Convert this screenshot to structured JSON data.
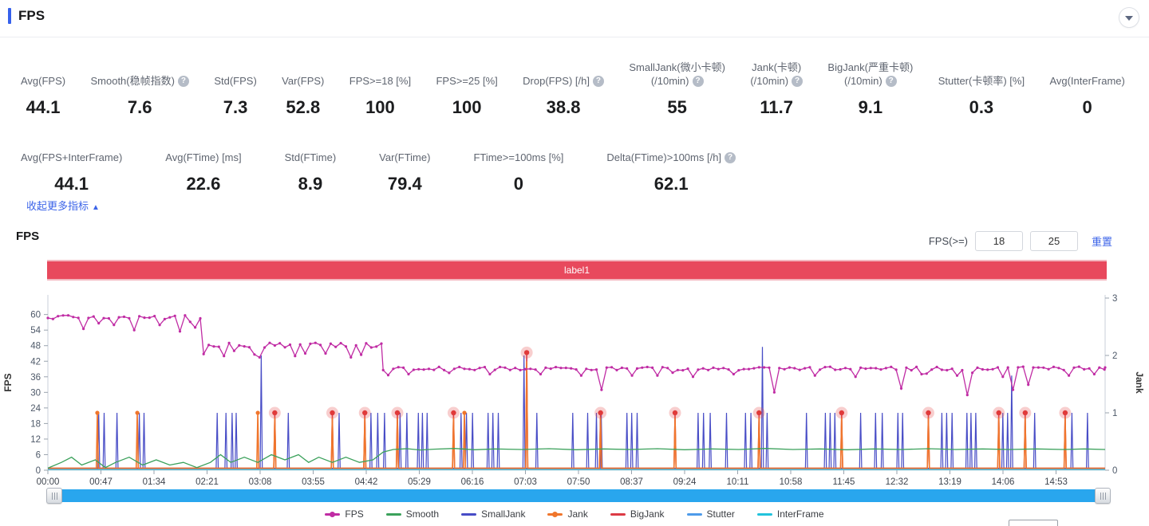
{
  "header": {
    "title": "FPS"
  },
  "metrics_row1": [
    {
      "label": "Avg(FPS)",
      "value": "44.1",
      "help": false
    },
    {
      "label": "Smooth(稳帧指数)",
      "value": "7.6",
      "help": true
    },
    {
      "label": "Std(FPS)",
      "value": "7.3",
      "help": false
    },
    {
      "label": "Var(FPS)",
      "value": "52.8",
      "help": false
    },
    {
      "label": "FPS>=18 [%]",
      "value": "100",
      "help": false
    },
    {
      "label": "FPS>=25 [%]",
      "value": "100",
      "help": false
    },
    {
      "label": "Drop(FPS) [/h]",
      "value": "38.8",
      "help": true
    },
    {
      "label": "SmallJank(微小卡顿)\n(/10min)",
      "value": "55",
      "help": true
    },
    {
      "label": "Jank(卡顿)\n(/10min)",
      "value": "11.7",
      "help": true
    },
    {
      "label": "BigJank(严重卡顿)\n(/10min)",
      "value": "9.1",
      "help": true
    },
    {
      "label": "Stutter(卡顿率) [%]",
      "value": "0.3",
      "help": false
    },
    {
      "label": "Avg(InterFrame)",
      "value": "0",
      "help": false
    }
  ],
  "metrics_row2": [
    {
      "label": "Avg(FPS+InterFrame)",
      "value": "44.1",
      "help": false
    },
    {
      "label": "Avg(FTime) [ms]",
      "value": "22.6",
      "help": false
    },
    {
      "label": "Std(FTime)",
      "value": "8.9",
      "help": false
    },
    {
      "label": "Var(FTime)",
      "value": "79.4",
      "help": false
    },
    {
      "label": "FTime>=100ms [%]",
      "value": "0",
      "help": false
    },
    {
      "label": "Delta(FTime)>100ms [/h]",
      "value": "62.1",
      "help": true
    }
  ],
  "collapse_link": {
    "text": "收起更多指标",
    "arrow": "▲"
  },
  "chart_section": {
    "title": "FPS",
    "filter_label": "FPS(>=)",
    "input1": "18",
    "input2": "25",
    "reset_label": "重置",
    "band_label": "label1"
  },
  "chart_data": {
    "type": "line",
    "title": "FPS",
    "annotation_band": "label1",
    "x_axis": {
      "labels": [
        "00:00",
        "00:47",
        "01:34",
        "02:21",
        "03:08",
        "03:55",
        "04:42",
        "05:29",
        "06:16",
        "07:03",
        "07:50",
        "08:37",
        "09:24",
        "10:11",
        "10:58",
        "11:45",
        "12:32",
        "13:19",
        "14:06",
        "14:53"
      ],
      "t_max_minutes": 15.61
    },
    "y_left": {
      "label": "FPS",
      "ticks": [
        0,
        6,
        12,
        18,
        24,
        30,
        36,
        42,
        48,
        54,
        60
      ],
      "range": [
        0,
        67.6
      ]
    },
    "y_right": {
      "label": "Jank",
      "ticks": [
        0,
        1,
        2,
        3
      ],
      "range": [
        0,
        3.05
      ]
    },
    "grid": false,
    "legend_position": "bottom",
    "series": [
      {
        "name": "FPS",
        "color": "#c02ca4",
        "axis": "left",
        "style": "dotted-line",
        "segments": [
          {
            "t0": 0.0,
            "t1": 2.3,
            "base": 59.4,
            "amp": 1.1
          },
          {
            "t0": 2.3,
            "t1": 4.95,
            "base": 48.8,
            "amp": 1.4
          },
          {
            "t0": 4.95,
            "t1": 15.61,
            "base": 39.6,
            "amp": 1.0
          }
        ],
        "dips": [
          [
            0.55,
            54.5
          ],
          [
            0.95,
            56
          ],
          [
            1.3,
            54
          ],
          [
            1.95,
            53.5
          ],
          [
            2.15,
            55
          ],
          [
            2.6,
            44
          ],
          [
            3.15,
            43.5
          ],
          [
            3.62,
            44
          ],
          [
            4.1,
            45
          ],
          [
            4.5,
            43.5
          ],
          [
            4.62,
            44.5
          ],
          [
            5.3,
            37
          ],
          [
            5.9,
            37.5
          ],
          [
            6.55,
            37
          ],
          [
            7.25,
            37
          ],
          [
            7.9,
            36.5
          ],
          [
            8.2,
            31
          ],
          [
            8.6,
            36.5
          ],
          [
            9.0,
            36.5
          ],
          [
            9.55,
            36
          ],
          [
            10.15,
            37
          ],
          [
            10.7,
            30
          ],
          [
            11.3,
            36.5
          ],
          [
            11.9,
            36
          ],
          [
            12.6,
            31.5
          ],
          [
            12.9,
            37
          ],
          [
            13.55,
            29
          ],
          [
            14.1,
            36
          ],
          [
            14.25,
            31
          ],
          [
            14.45,
            33
          ],
          [
            15.1,
            36.5
          ],
          [
            15.45,
            37
          ]
        ]
      },
      {
        "name": "Smooth",
        "color": "#3ba15b",
        "axis": "left",
        "style": "line",
        "points": [
          [
            0,
            0.8
          ],
          [
            0.2,
            3
          ],
          [
            0.35,
            5
          ],
          [
            0.5,
            2
          ],
          [
            0.7,
            4
          ],
          [
            0.85,
            1
          ],
          [
            1.0,
            3
          ],
          [
            1.2,
            5
          ],
          [
            1.4,
            2
          ],
          [
            1.6,
            4
          ],
          [
            1.8,
            2
          ],
          [
            2.0,
            3
          ],
          [
            2.2,
            1
          ],
          [
            2.4,
            3
          ],
          [
            2.55,
            6
          ],
          [
            2.7,
            3
          ],
          [
            2.9,
            5
          ],
          [
            3.1,
            3
          ],
          [
            3.3,
            6
          ],
          [
            3.5,
            4
          ],
          [
            3.7,
            6
          ],
          [
            3.85,
            3
          ],
          [
            4.0,
            5
          ],
          [
            4.2,
            3
          ],
          [
            4.4,
            5
          ],
          [
            4.6,
            3
          ],
          [
            4.8,
            4
          ],
          [
            4.95,
            7
          ],
          [
            5.1,
            8
          ],
          [
            5.3,
            8.3
          ],
          [
            5.5,
            7.8
          ],
          [
            5.7,
            8.1
          ],
          [
            6.0,
            8.4
          ],
          [
            6.3,
            7.9
          ],
          [
            6.6,
            8.2
          ],
          [
            7.0,
            8.0
          ],
          [
            7.4,
            8.3
          ],
          [
            7.8,
            7.9
          ],
          [
            8.2,
            8.2
          ],
          [
            8.6,
            8.0
          ],
          [
            9.0,
            8.3
          ],
          [
            9.4,
            7.9
          ],
          [
            9.8,
            8.2
          ],
          [
            10.2,
            8.0
          ],
          [
            10.6,
            8.4
          ],
          [
            11.0,
            8.0
          ],
          [
            11.4,
            8.2
          ],
          [
            11.8,
            7.9
          ],
          [
            12.2,
            8.2
          ],
          [
            12.6,
            8.0
          ],
          [
            13.0,
            8.3
          ],
          [
            13.4,
            8.0
          ],
          [
            13.8,
            8.2
          ],
          [
            14.2,
            8.0
          ],
          [
            14.6,
            8.2
          ],
          [
            15.0,
            8.0
          ],
          [
            15.3,
            8.2
          ],
          [
            15.61,
            8.0
          ]
        ]
      },
      {
        "name": "SmallJank",
        "color": "#474cc6",
        "axis": "right",
        "style": "spikes",
        "spikes": [
          [
            0.75,
            1
          ],
          [
            0.83,
            1
          ],
          [
            1.02,
            1
          ],
          [
            1.35,
            1
          ],
          [
            1.42,
            1
          ],
          [
            2.5,
            1
          ],
          [
            2.63,
            1
          ],
          [
            2.72,
            1
          ],
          [
            2.78,
            1
          ],
          [
            3.15,
            2.0
          ],
          [
            3.55,
            1
          ],
          [
            4.3,
            1
          ],
          [
            4.77,
            1
          ],
          [
            4.87,
            1
          ],
          [
            4.97,
            1
          ],
          [
            5.2,
            1
          ],
          [
            5.3,
            1
          ],
          [
            5.47,
            1
          ],
          [
            5.53,
            1
          ],
          [
            5.6,
            1
          ],
          [
            6.1,
            1
          ],
          [
            6.18,
            1
          ],
          [
            6.27,
            1
          ],
          [
            6.5,
            1
          ],
          [
            6.57,
            1
          ],
          [
            6.65,
            1
          ],
          [
            7.03,
            2.0
          ],
          [
            7.22,
            1
          ],
          [
            7.75,
            1
          ],
          [
            7.97,
            1
          ],
          [
            8.1,
            1
          ],
          [
            8.17,
            1
          ],
          [
            8.55,
            1
          ],
          [
            8.62,
            1
          ],
          [
            8.7,
            1
          ],
          [
            9.6,
            1
          ],
          [
            9.68,
            1
          ],
          [
            9.78,
            1
          ],
          [
            10.02,
            1
          ],
          [
            10.3,
            1
          ],
          [
            10.38,
            1
          ],
          [
            10.55,
            2.15
          ],
          [
            10.62,
            1
          ],
          [
            11.2,
            1
          ],
          [
            11.48,
            1
          ],
          [
            11.55,
            1
          ],
          [
            11.62,
            1
          ],
          [
            12.0,
            1
          ],
          [
            12.22,
            1
          ],
          [
            12.32,
            1
          ],
          [
            12.55,
            1
          ],
          [
            12.62,
            1
          ],
          [
            13.2,
            1
          ],
          [
            13.27,
            1
          ],
          [
            13.35,
            1
          ],
          [
            13.57,
            1
          ],
          [
            13.63,
            1
          ],
          [
            13.7,
            1
          ],
          [
            14.1,
            1
          ],
          [
            14.17,
            1
          ],
          [
            14.23,
            1.65
          ],
          [
            14.57,
            1
          ],
          [
            15.12,
            1
          ],
          [
            15.35,
            1
          ]
        ]
      },
      {
        "name": "Jank",
        "color": "#f0762c",
        "axis": "right",
        "style": "spikes",
        "spikes": [
          [
            0.73,
            1
          ],
          [
            1.32,
            1
          ],
          [
            3.1,
            1
          ],
          [
            3.35,
            0.92
          ],
          [
            4.2,
            0.92
          ],
          [
            4.68,
            0.92
          ],
          [
            5.16,
            0.92
          ],
          [
            5.99,
            0.92
          ],
          [
            6.15,
            1
          ],
          [
            7.07,
            1.9
          ],
          [
            8.16,
            0.92
          ],
          [
            9.26,
            0.92
          ],
          [
            10.5,
            0.92
          ],
          [
            11.72,
            0.92
          ],
          [
            13.0,
            0.92
          ],
          [
            14.04,
            0.92
          ],
          [
            14.43,
            0.92
          ],
          [
            15.02,
            0.92
          ]
        ],
        "marker_points": [
          [
            0.73,
            1
          ],
          [
            1.32,
            1
          ],
          [
            3.1,
            1
          ],
          [
            6.15,
            1
          ]
        ]
      },
      {
        "name": "BigJank",
        "color": "#dc3a45",
        "axis": "right",
        "style": "spikes",
        "spikes": [
          [
            3.35,
            1
          ],
          [
            4.2,
            1
          ],
          [
            4.68,
            1
          ],
          [
            5.16,
            1
          ],
          [
            5.99,
            1
          ],
          [
            7.07,
            2.05
          ],
          [
            8.16,
            1
          ],
          [
            9.26,
            1
          ],
          [
            10.5,
            1
          ],
          [
            11.72,
            1
          ],
          [
            13.0,
            1
          ],
          [
            14.04,
            1
          ],
          [
            14.43,
            1
          ],
          [
            15.02,
            1
          ]
        ],
        "highlight_markers": true
      },
      {
        "name": "Stutter",
        "color": "#4e9bea",
        "axis": "right",
        "style": "flat",
        "baseline": 0
      },
      {
        "name": "InterFrame",
        "color": "#22c3dc",
        "axis": "right",
        "style": "flat",
        "baseline": 0
      }
    ],
    "legend": [
      {
        "name": "FPS",
        "color": "#c02ca4",
        "dot": true
      },
      {
        "name": "Smooth",
        "color": "#3ba15b",
        "dot": false
      },
      {
        "name": "SmallJank",
        "color": "#474cc6",
        "dot": false
      },
      {
        "name": "Jank",
        "color": "#f0762c",
        "dot": true
      },
      {
        "name": "BigJank",
        "color": "#dc3a45",
        "dot": false
      },
      {
        "name": "Stutter",
        "color": "#4e9bea",
        "dot": false
      },
      {
        "name": "InterFrame",
        "color": "#22c3dc",
        "dot": false
      }
    ]
  },
  "colors": {
    "accent_blue": "#3661ec",
    "link_blue": "#3c64e8",
    "band_red": "#e8495d",
    "zoom_blue": "#29a6ee"
  }
}
